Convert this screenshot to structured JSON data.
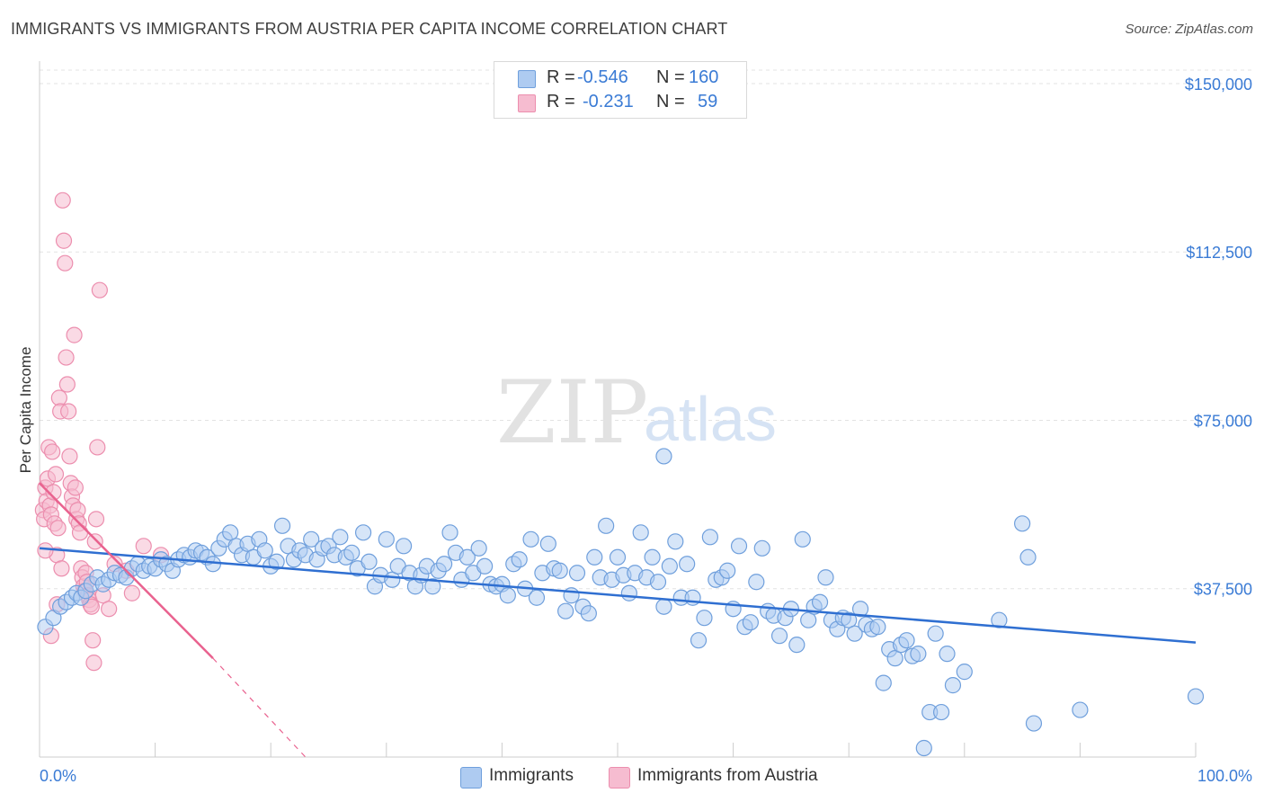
{
  "header": {
    "title": "IMMIGRANTS VS IMMIGRANTS FROM AUSTRIA PER CAPITA INCOME CORRELATION CHART",
    "source": "Source: ZipAtlas.com"
  },
  "watermark": {
    "zip": "ZIP",
    "atlas": "atlas"
  },
  "colors": {
    "immigrants_fill": "#aecbf1",
    "immigrants_stroke": "#6f9fdc",
    "immigrants_line": "#2f6fd1",
    "austria_fill": "#f6bcd0",
    "austria_stroke": "#ec8eae",
    "austria_line": "#e9628f",
    "tick_text": "#3a7bd5"
  },
  "legend": {
    "rows": [
      {
        "r_label": "R =",
        "r_value": "-0.546",
        "n_label": "N =",
        "n_value": "160"
      },
      {
        "r_label": "R =",
        "r_value": "-0.231",
        "n_label": "N =",
        "n_value": "59"
      }
    ],
    "bottom": [
      "Immigrants",
      "Immigrants from Austria"
    ]
  },
  "chart_data": {
    "type": "scatter",
    "title": "IMMIGRANTS VS IMMIGRANTS FROM AUSTRIA PER CAPITA INCOME CORRELATION CHART",
    "xlabel": "",
    "ylabel": "Per Capita Income",
    "xlim": [
      0,
      100
    ],
    "ylim": [
      0,
      155000
    ],
    "x_tick_labels": [
      "0.0%",
      "100.0%"
    ],
    "y_ticks": [
      37500,
      75000,
      112500,
      150000
    ],
    "y_tick_labels": [
      "$37,500",
      "$75,000",
      "$112,500",
      "$150,000"
    ],
    "grid": true,
    "series": [
      {
        "name": "Immigrants",
        "r": -0.546,
        "n": 160,
        "trend": {
          "x": [
            0,
            100
          ],
          "y": [
            46500,
            25500
          ]
        },
        "points": [
          [
            0.5,
            29000
          ],
          [
            1.2,
            31000
          ],
          [
            1.8,
            33500
          ],
          [
            2.3,
            34500
          ],
          [
            2.8,
            35500
          ],
          [
            3.2,
            36500
          ],
          [
            3.6,
            35500
          ],
          [
            4.0,
            37000
          ],
          [
            4.5,
            38500
          ],
          [
            5.0,
            40000
          ],
          [
            5.5,
            38500
          ],
          [
            6.0,
            39500
          ],
          [
            6.5,
            41000
          ],
          [
            7.0,
            40500
          ],
          [
            7.5,
            40000
          ],
          [
            8.0,
            42000
          ],
          [
            8.5,
            43000
          ],
          [
            9.0,
            41500
          ],
          [
            9.5,
            42500
          ],
          [
            10.0,
            42000
          ],
          [
            10.5,
            44000
          ],
          [
            11.0,
            43000
          ],
          [
            11.5,
            41500
          ],
          [
            12.0,
            44000
          ],
          [
            12.5,
            45000
          ],
          [
            13.0,
            44500
          ],
          [
            13.5,
            46000
          ],
          [
            14.0,
            45500
          ],
          [
            14.5,
            44500
          ],
          [
            15.0,
            43000
          ],
          [
            15.5,
            46500
          ],
          [
            16.0,
            48500
          ],
          [
            16.5,
            50000
          ],
          [
            17.0,
            47000
          ],
          [
            17.5,
            45000
          ],
          [
            18.0,
            47500
          ],
          [
            18.5,
            44500
          ],
          [
            19.0,
            48500
          ],
          [
            19.5,
            46000
          ],
          [
            20.0,
            42500
          ],
          [
            20.5,
            43500
          ],
          [
            21.0,
            51500
          ],
          [
            21.5,
            47000
          ],
          [
            22.0,
            44000
          ],
          [
            22.5,
            46000
          ],
          [
            23.0,
            45000
          ],
          [
            23.5,
            48500
          ],
          [
            24.0,
            44000
          ],
          [
            24.5,
            46500
          ],
          [
            25.0,
            47000
          ],
          [
            25.5,
            45000
          ],
          [
            26.0,
            49000
          ],
          [
            26.5,
            44500
          ],
          [
            27.0,
            45500
          ],
          [
            27.5,
            42000
          ],
          [
            28.0,
            50000
          ],
          [
            28.5,
            43500
          ],
          [
            29.0,
            38000
          ],
          [
            29.5,
            40500
          ],
          [
            30.0,
            48500
          ],
          [
            30.5,
            39500
          ],
          [
            31.0,
            42500
          ],
          [
            31.5,
            47000
          ],
          [
            32.0,
            41000
          ],
          [
            32.5,
            38000
          ],
          [
            33.0,
            40500
          ],
          [
            33.5,
            42500
          ],
          [
            34.0,
            38000
          ],
          [
            34.5,
            41500
          ],
          [
            35.0,
            43000
          ],
          [
            35.5,
            50000
          ],
          [
            36.0,
            45500
          ],
          [
            36.5,
            39500
          ],
          [
            37.0,
            44500
          ],
          [
            37.5,
            41000
          ],
          [
            38.0,
            46500
          ],
          [
            38.5,
            42500
          ],
          [
            39.0,
            38500
          ],
          [
            39.5,
            38000
          ],
          [
            40.0,
            38500
          ],
          [
            40.5,
            36000
          ],
          [
            41.0,
            43000
          ],
          [
            41.5,
            44000
          ],
          [
            42.0,
            37500
          ],
          [
            42.5,
            48500
          ],
          [
            43.0,
            35500
          ],
          [
            43.5,
            41000
          ],
          [
            44.0,
            47500
          ],
          [
            44.5,
            42000
          ],
          [
            45.0,
            41500
          ],
          [
            45.5,
            32500
          ],
          [
            46.0,
            36000
          ],
          [
            46.5,
            41000
          ],
          [
            47.0,
            33500
          ],
          [
            47.5,
            32000
          ],
          [
            48.0,
            44500
          ],
          [
            48.5,
            40000
          ],
          [
            49.0,
            51500
          ],
          [
            49.5,
            39500
          ],
          [
            50.0,
            44500
          ],
          [
            50.5,
            40500
          ],
          [
            51.0,
            36500
          ],
          [
            51.5,
            41000
          ],
          [
            52.0,
            50000
          ],
          [
            52.5,
            40000
          ],
          [
            53.0,
            44500
          ],
          [
            53.5,
            39000
          ],
          [
            54.0,
            33500
          ],
          [
            54.5,
            42500
          ],
          [
            55.0,
            48000
          ],
          [
            55.5,
            35500
          ],
          [
            56.0,
            43000
          ],
          [
            56.5,
            35500
          ],
          [
            57.0,
            26000
          ],
          [
            57.5,
            31000
          ],
          [
            58.0,
            49000
          ],
          [
            58.5,
            39500
          ],
          [
            59.0,
            40000
          ],
          [
            59.5,
            41500
          ],
          [
            60.0,
            33000
          ],
          [
            60.5,
            47000
          ],
          [
            61.0,
            29000
          ],
          [
            61.5,
            30000
          ],
          [
            62.0,
            39000
          ],
          [
            62.5,
            46500
          ],
          [
            63.0,
            32500
          ],
          [
            63.5,
            31500
          ],
          [
            64.0,
            27000
          ],
          [
            64.5,
            31000
          ],
          [
            65.0,
            33000
          ],
          [
            65.5,
            25000
          ],
          [
            66.0,
            48500
          ],
          [
            66.5,
            30500
          ],
          [
            67.0,
            33500
          ],
          [
            67.5,
            34500
          ],
          [
            68.0,
            40000
          ],
          [
            68.5,
            30500
          ],
          [
            69.0,
            28500
          ],
          [
            69.5,
            31000
          ],
          [
            70.0,
            30500
          ],
          [
            70.5,
            27500
          ],
          [
            71.0,
            33000
          ],
          [
            71.5,
            29500
          ],
          [
            72.0,
            28500
          ],
          [
            72.5,
            29000
          ],
          [
            73.0,
            16500
          ],
          [
            73.5,
            24000
          ],
          [
            74.0,
            22000
          ],
          [
            74.5,
            25000
          ],
          [
            75.0,
            26000
          ],
          [
            75.5,
            22500
          ],
          [
            76.0,
            23000
          ],
          [
            76.5,
            2000
          ],
          [
            77.0,
            10000
          ],
          [
            77.5,
            27500
          ],
          [
            78.0,
            10000
          ],
          [
            78.5,
            23000
          ],
          [
            79.0,
            16000
          ],
          [
            80.0,
            19000
          ],
          [
            83.0,
            30500
          ],
          [
            85.0,
            52000
          ],
          [
            85.5,
            44500
          ],
          [
            86.0,
            7500
          ],
          [
            90.0,
            10500
          ],
          [
            100.0,
            13500
          ],
          [
            54.0,
            67000
          ]
        ]
      },
      {
        "name": "Immigrants from Austria",
        "r": -0.231,
        "n": 59,
        "trend": {
          "x": [
            0,
            15
          ],
          "y": [
            61000,
            22000
          ]
        },
        "trend_dashed": {
          "x": [
            15,
            23
          ],
          "y": [
            22000,
            0
          ]
        },
        "points": [
          [
            0.3,
            55000
          ],
          [
            0.4,
            53000
          ],
          [
            0.5,
            60000
          ],
          [
            0.6,
            57000
          ],
          [
            0.7,
            62000
          ],
          [
            0.8,
            69000
          ],
          [
            0.9,
            56000
          ],
          [
            1.0,
            54000
          ],
          [
            1.1,
            68000
          ],
          [
            1.2,
            59000
          ],
          [
            1.3,
            52000
          ],
          [
            1.4,
            63000
          ],
          [
            1.5,
            45000
          ],
          [
            1.6,
            51000
          ],
          [
            1.7,
            80000
          ],
          [
            1.8,
            77000
          ],
          [
            1.9,
            42000
          ],
          [
            2.0,
            124000
          ],
          [
            2.1,
            115000
          ],
          [
            2.2,
            110000
          ],
          [
            2.3,
            89000
          ],
          [
            2.4,
            83000
          ],
          [
            2.5,
            77000
          ],
          [
            2.6,
            67000
          ],
          [
            2.7,
            61000
          ],
          [
            2.8,
            58000
          ],
          [
            2.9,
            56000
          ],
          [
            3.0,
            94000
          ],
          [
            3.1,
            60000
          ],
          [
            3.2,
            53000
          ],
          [
            3.3,
            55000
          ],
          [
            3.4,
            52000
          ],
          [
            3.5,
            50000
          ],
          [
            3.6,
            42000
          ],
          [
            3.7,
            40000
          ],
          [
            3.8,
            38000
          ],
          [
            3.9,
            37000
          ],
          [
            4.0,
            41000
          ],
          [
            4.1,
            39000
          ],
          [
            4.2,
            36000
          ],
          [
            4.3,
            35000
          ],
          [
            4.4,
            34000
          ],
          [
            4.5,
            33500
          ],
          [
            4.6,
            26000
          ],
          [
            4.7,
            21000
          ],
          [
            4.8,
            48000
          ],
          [
            4.9,
            53000
          ],
          [
            5.0,
            69000
          ],
          [
            5.2,
            104000
          ],
          [
            5.5,
            36000
          ],
          [
            6.0,
            33000
          ],
          [
            6.5,
            43000
          ],
          [
            7.5,
            41500
          ],
          [
            8.0,
            36500
          ],
          [
            9.0,
            47000
          ],
          [
            10.5,
            45000
          ],
          [
            0.5,
            46000
          ],
          [
            1.0,
            27000
          ],
          [
            1.5,
            34000
          ]
        ]
      }
    ]
  }
}
